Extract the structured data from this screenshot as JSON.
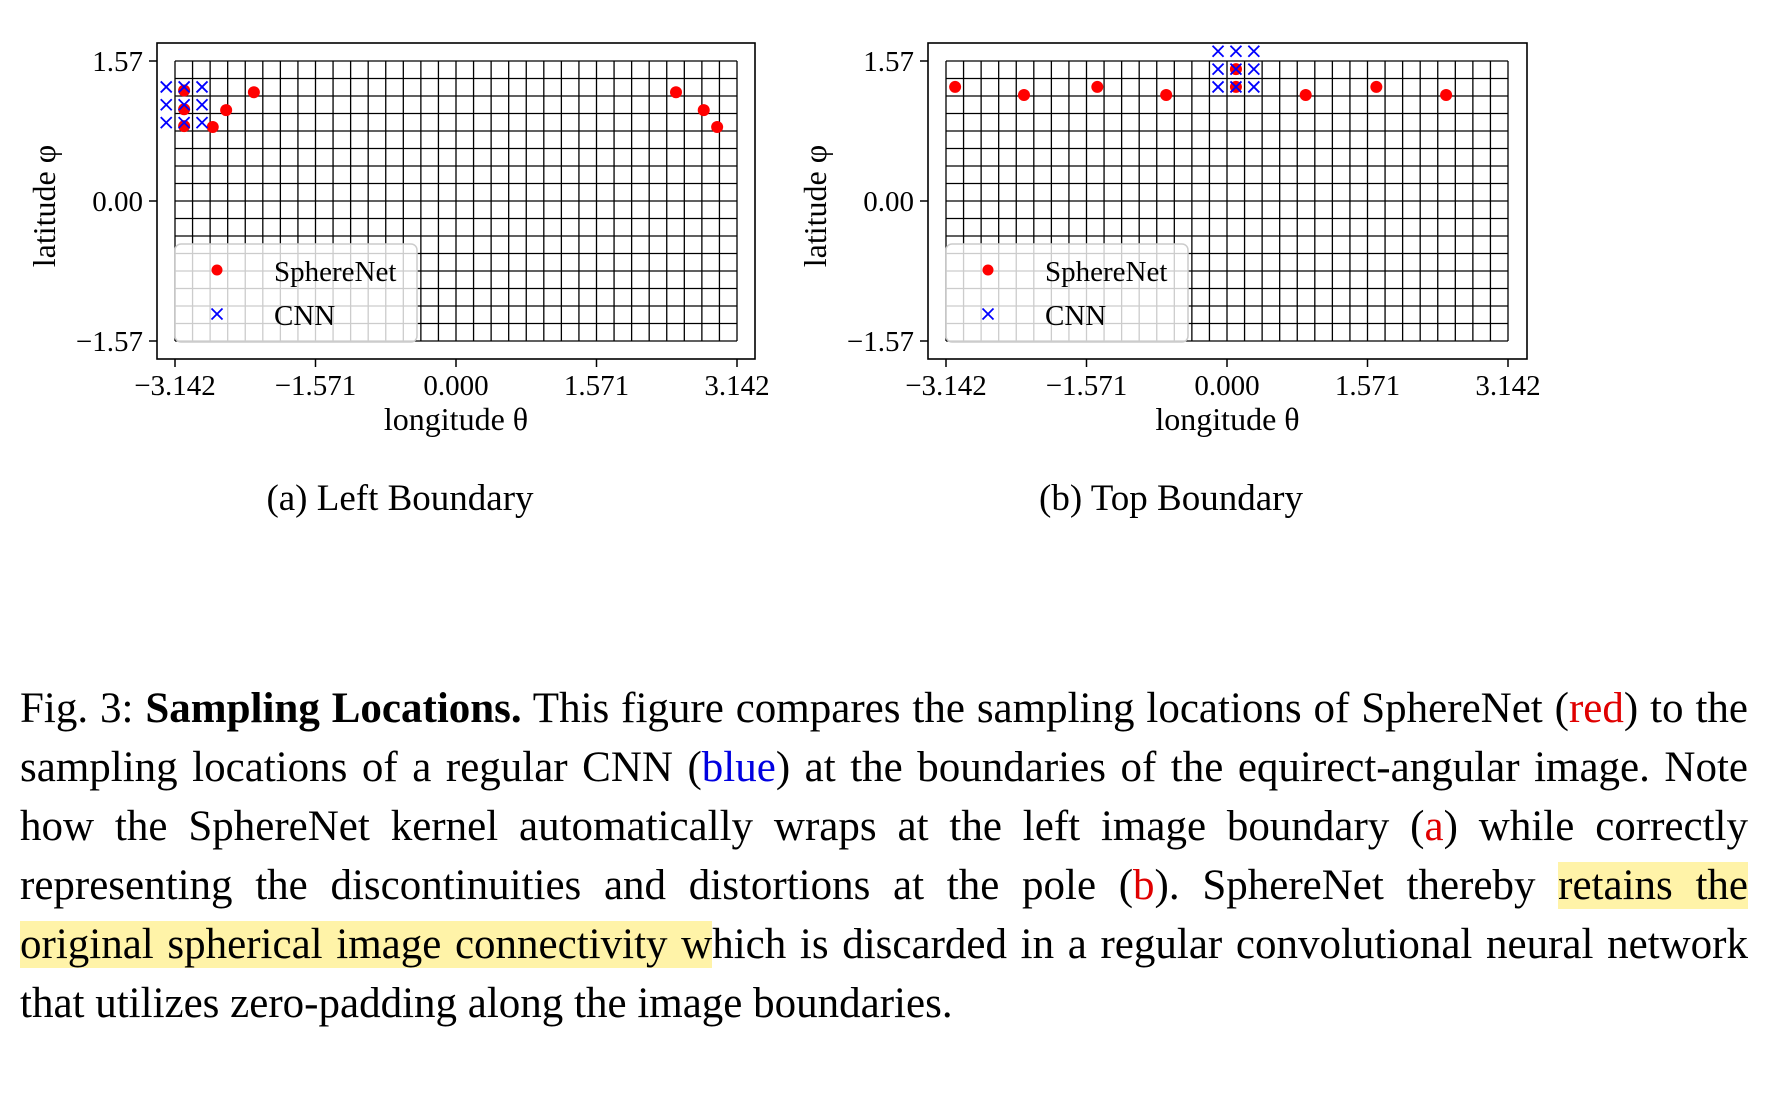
{
  "chart_data": [
    {
      "type": "scatter",
      "subcaption": "(a) Left Boundary",
      "xlabel": "longitude θ",
      "ylabel": "latitude φ",
      "xlim": [
        -3.142,
        3.142
      ],
      "ylim": [
        -1.571,
        1.571
      ],
      "xticks": [
        "−3.142",
        "−1.571",
        "0.000",
        "1.571",
        "3.142"
      ],
      "xtick_values": [
        -3.142,
        -1.571,
        0.0,
        1.571,
        3.142
      ],
      "yticks": [
        "1.57",
        "0.00",
        "−1.57"
      ],
      "ytick_values": [
        1.571,
        0.0,
        -1.571
      ],
      "grid": {
        "cols": 32,
        "rows": 16
      },
      "legend": [
        "SphereNet",
        "CNN"
      ],
      "series": [
        {
          "name": "SphereNet",
          "marker": "circle",
          "color": "#ff0000",
          "points": [
            [
              -3.04,
              1.24
            ],
            [
              -3.04,
              1.03
            ],
            [
              -3.04,
              0.84
            ],
            [
              -2.72,
              0.83
            ],
            [
              -2.57,
              1.02
            ],
            [
              -2.26,
              1.22
            ],
            [
              2.46,
              1.22
            ],
            [
              2.77,
              1.02
            ],
            [
              2.92,
              0.83
            ]
          ]
        },
        {
          "name": "CNN",
          "marker": "x",
          "color": "#0000ff",
          "points": [
            [
              -3.24,
              1.28
            ],
            [
              -3.04,
              1.28
            ],
            [
              -2.84,
              1.28
            ],
            [
              -3.24,
              1.08
            ],
            [
              -3.04,
              1.08
            ],
            [
              -2.84,
              1.08
            ],
            [
              -3.24,
              0.88
            ],
            [
              -3.04,
              0.88
            ],
            [
              -2.84,
              0.88
            ]
          ]
        }
      ]
    },
    {
      "type": "scatter",
      "subcaption": "(b) Top Boundary",
      "xlabel": "longitude θ",
      "ylabel": "latitude φ",
      "xlim": [
        -3.142,
        3.142
      ],
      "ylim": [
        -1.571,
        1.571
      ],
      "xticks": [
        "−3.142",
        "−1.571",
        "0.000",
        "1.571",
        "3.142"
      ],
      "xtick_values": [
        -3.142,
        -1.571,
        0.0,
        1.571,
        3.142
      ],
      "yticks": [
        "1.57",
        "0.00",
        "−1.57"
      ],
      "ytick_values": [
        1.571,
        0.0,
        -1.571
      ],
      "grid": {
        "cols": 32,
        "rows": 16
      },
      "legend": [
        "SphereNet",
        "CNN"
      ],
      "series": [
        {
          "name": "SphereNet",
          "marker": "circle",
          "color": "#ff0000",
          "points": [
            [
              0.1,
              1.48
            ],
            [
              0.1,
              1.28
            ],
            [
              -3.04,
              1.28
            ],
            [
              -2.27,
              1.19
            ],
            [
              -1.45,
              1.28
            ],
            [
              -0.68,
              1.19
            ],
            [
              0.88,
              1.19
            ],
            [
              1.67,
              1.28
            ],
            [
              2.45,
              1.19
            ]
          ]
        },
        {
          "name": "CNN",
          "marker": "x",
          "color": "#0000ff",
          "points": [
            [
              -0.1,
              1.68
            ],
            [
              0.1,
              1.68
            ],
            [
              0.3,
              1.68
            ],
            [
              -0.1,
              1.48
            ],
            [
              0.1,
              1.48
            ],
            [
              0.3,
              1.48
            ],
            [
              -0.1,
              1.28
            ],
            [
              0.1,
              1.28
            ],
            [
              0.3,
              1.28
            ]
          ]
        }
      ]
    }
  ],
  "caption": {
    "fig": "Fig. 3:",
    "title": "Sampling Locations.",
    "t1": " This figure compares the sampling locations of SphereNet (",
    "red": "red",
    "t2": ") to the sampling locations of a regular CNN (",
    "blue": "blue",
    "t3": ") at the boundaries of the equirect-angular image. Note how the SphereNet kernel automatically wraps at the left image boundary (",
    "a": "a",
    "t4": ") while correctly representing the discontinuities and distortions at the pole (",
    "b": "b",
    "t5": "). SphereNet thereby ",
    "highlight": "retains the original spherical image connectivity w",
    "t6": "hich is discarded in a regular convolutional neural network that utilizes zero-padding along the image boundaries."
  }
}
